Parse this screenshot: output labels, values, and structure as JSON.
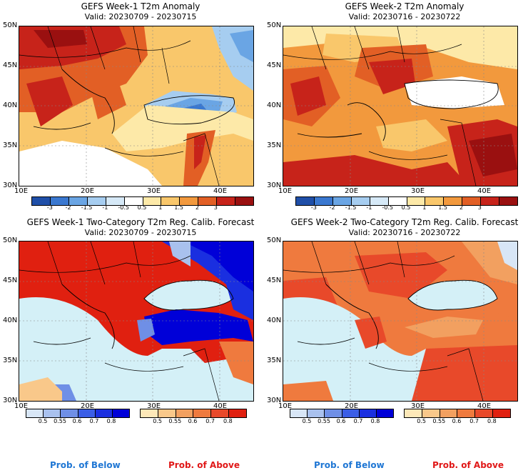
{
  "panels": [
    {
      "title": "GEFS Week-1 T2m Anomaly",
      "valid": "Valid: 20230709 - 20230715"
    },
    {
      "title": "GEFS Week-2 T2m Anomaly",
      "valid": "Valid: 20230716 - 20230722"
    },
    {
      "title": "GEFS Week-1 Two-Category T2m Reg. Calib. Forecast",
      "valid": "Valid: 20230709 - 20230715"
    },
    {
      "title": "GEFS Week-2 Two-Category T2m Reg. Calib. Forecast",
      "valid": "Valid: 20230716 - 20230722"
    }
  ],
  "axes": {
    "lat_labels": [
      "50N",
      "45N",
      "40N",
      "35N",
      "30N"
    ],
    "lon_labels": [
      "10E",
      "20E",
      "30E",
      "40E"
    ]
  },
  "anomaly_colorbar": {
    "ticks": [
      "-3",
      "-2",
      "-1.5",
      "-1",
      "-0.5",
      "0.5",
      "1",
      "1.5",
      "2",
      "3"
    ],
    "colors": [
      "#1f4fa8",
      "#3a78d0",
      "#6aa5e4",
      "#a6cdf0",
      "#d6e9f7",
      "#ffffff",
      "#fde9a8",
      "#f9c76b",
      "#f2993d",
      "#e25f25",
      "#c7231a",
      "#9a1010"
    ]
  },
  "prob_below_colorbar": {
    "ticks": [
      "0.5",
      "0.55",
      "0.6",
      "0.7",
      "0.8"
    ],
    "colors": [
      "#d8e6f6",
      "#a9c1ee",
      "#6f8fe6",
      "#3b5ee6",
      "#1a2fe0",
      "#0000d8"
    ]
  },
  "prob_above_colorbar": {
    "ticks": [
      "0.5",
      "0.55",
      "0.6",
      "0.7",
      "0.8"
    ],
    "colors": [
      "#fde8b8",
      "#f9c88a",
      "#f2a060",
      "#ef7a3e",
      "#e8492a",
      "#e02010"
    ]
  },
  "prob_labels": {
    "below": "Prob. of Below",
    "above": "Prob. of Above"
  },
  "colors": {
    "sea": "#d4f0f7",
    "prob_below": "#2077d4",
    "prob_above": "#e01818"
  }
}
